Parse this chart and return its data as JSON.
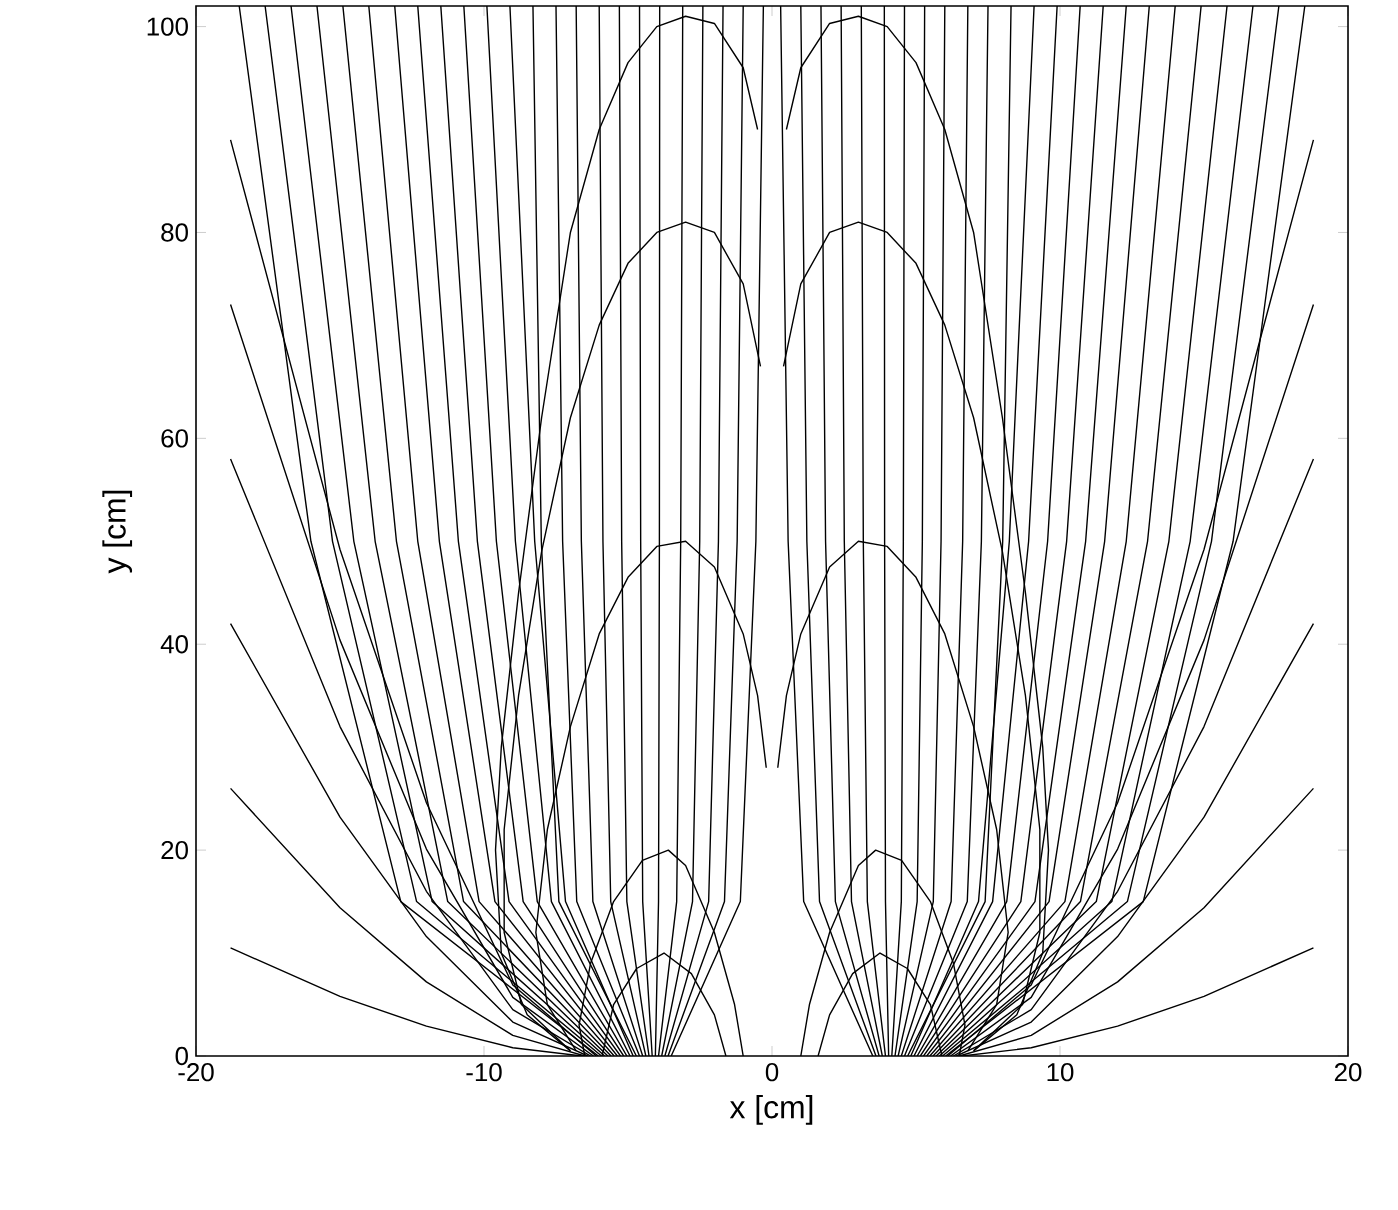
{
  "chart_data": {
    "type": "line",
    "xlabel": "x [cm]",
    "ylabel": "y [cm]",
    "xlim": [
      -20,
      20
    ],
    "ylim": [
      0,
      102
    ],
    "xticks": [
      -20,
      -10,
      0,
      10,
      20
    ],
    "yticks": [
      0,
      20,
      40,
      60,
      80,
      100
    ],
    "series": [
      {
        "color": "#000000",
        "x": [
          0.5,
          1,
          2,
          3,
          4,
          5,
          6,
          7,
          8,
          8.8,
          9.4,
          9.6,
          9.4,
          8.5,
          7
        ],
        "values": [
          90,
          96,
          100.3,
          101,
          100,
          96.5,
          90,
          80,
          62,
          45,
          30,
          20,
          10,
          4,
          0.5
        ]
      },
      {
        "color": "#000000",
        "x": [
          0.4,
          1,
          2,
          3,
          4,
          5,
          6,
          7,
          8,
          8.8,
          9.3,
          9.3,
          8.7,
          7
        ],
        "values": [
          67,
          75,
          80,
          81,
          80,
          77,
          71,
          62,
          49,
          35,
          22,
          12,
          5,
          0.5
        ]
      },
      {
        "color": "#000000",
        "x": [
          0.2,
          0.5,
          1,
          2,
          3,
          4,
          5,
          6,
          7,
          7.8,
          8.2,
          7.8,
          6.8
        ],
        "values": [
          28,
          35,
          41,
          47.5,
          50,
          49.5,
          46.5,
          41,
          32,
          22,
          12,
          5,
          0.5
        ]
      },
      {
        "color": "#000000",
        "x": [
          1,
          1.3,
          2,
          3,
          3.6,
          4.5,
          5.5,
          6.3,
          6.7,
          6.5
        ],
        "values": [
          0,
          5,
          12,
          18.5,
          20,
          19,
          15,
          9,
          3,
          0
        ]
      },
      {
        "color": "#000000",
        "x": [
          1.6,
          2,
          2.8,
          3.75,
          4.7,
          5.5,
          5.9
        ],
        "values": [
          0,
          4,
          8,
          10,
          8.5,
          5,
          0
        ]
      },
      {
        "color": "#000000",
        "x": [
          -0.5,
          -1,
          -2,
          -3,
          -4,
          -5,
          -6,
          -7,
          -8,
          -8.8,
          -9.4,
          -9.6,
          -9.4,
          -8.5,
          -7
        ],
        "values": [
          90,
          96,
          100.3,
          101,
          100,
          96.5,
          90,
          80,
          62,
          45,
          30,
          20,
          10,
          4,
          0.5
        ]
      },
      {
        "color": "#000000",
        "x": [
          -0.4,
          -1,
          -2,
          -3,
          -4,
          -5,
          -6,
          -7,
          -8,
          -8.8,
          -9.3,
          -9.3,
          -8.7,
          -7
        ],
        "values": [
          67,
          75,
          80,
          81,
          80,
          77,
          71,
          62,
          49,
          35,
          22,
          12,
          5,
          0.5
        ]
      },
      {
        "color": "#000000",
        "x": [
          -0.2,
          -0.5,
          -1,
          -2,
          -3,
          -4,
          -5,
          -6,
          -7,
          -7.8,
          -8.2,
          -7.8,
          -6.8
        ],
        "values": [
          28,
          35,
          41,
          47.5,
          50,
          49.5,
          46.5,
          41,
          32,
          22,
          12,
          5,
          0.5
        ]
      },
      {
        "color": "#000000",
        "x": [
          -1,
          -1.3,
          -2,
          -3,
          -3.6,
          -4.5,
          -5.5,
          -6.3,
          -6.7,
          -6.5
        ],
        "values": [
          0,
          5,
          12,
          18.5,
          20,
          19,
          15,
          9,
          3,
          0
        ]
      },
      {
        "color": "#000000",
        "x": [
          -1.6,
          -2,
          -2.8,
          -3.75,
          -4.7,
          -5.5,
          -5.9
        ],
        "values": [
          0,
          4,
          8,
          10,
          8.5,
          5,
          0
        ]
      },
      {
        "color": "#000000",
        "x": [
          3.5,
          1.1,
          0.56,
          0.3
        ],
        "values": [
          0,
          15,
          50,
          102
        ]
      },
      {
        "color": "#000000",
        "x": [
          3.61,
          1.65,
          1.21,
          1.0
        ],
        "values": [
          0,
          15,
          50,
          102
        ]
      },
      {
        "color": "#000000",
        "x": [
          3.72,
          2.2,
          1.86,
          1.7
        ],
        "values": [
          0,
          15,
          50,
          102
        ]
      },
      {
        "color": "#000000",
        "x": [
          3.83,
          2.76,
          2.51,
          2.4
        ],
        "values": [
          0,
          15,
          50,
          102
        ]
      },
      {
        "color": "#000000",
        "x": [
          3.94,
          3.31,
          3.17,
          3.1
        ],
        "values": [
          0,
          15,
          50,
          102
        ]
      },
      {
        "color": "#000000",
        "x": [
          4.05,
          3.94,
          3.91,
          3.9
        ],
        "values": [
          0,
          15,
          50,
          102
        ]
      },
      {
        "color": "#000000",
        "x": [
          4.16,
          4.49,
          4.56,
          4.6
        ],
        "values": [
          0,
          15,
          50,
          102
        ]
      },
      {
        "color": "#000000",
        "x": [
          4.27,
          5.04,
          5.22,
          5.3
        ],
        "values": [
          0,
          15,
          50,
          102
        ]
      },
      {
        "color": "#000000",
        "x": [
          4.38,
          5.6,
          5.87,
          6.0
        ],
        "values": [
          0,
          15,
          50,
          102
        ]
      },
      {
        "color": "#000000",
        "x": [
          4.49,
          6.22,
          6.62,
          6.8
        ],
        "values": [
          0,
          15,
          50,
          102
        ]
      },
      {
        "color": "#000000",
        "x": [
          4.6,
          6.78,
          7.27,
          7.5
        ],
        "values": [
          0,
          15,
          50,
          102
        ]
      },
      {
        "color": "#000000",
        "x": [
          4.71,
          7.4,
          8.01,
          8.3
        ],
        "values": [
          0,
          15,
          50,
          102
        ]
      },
      {
        "color": "#000000",
        "x": [
          4.82,
          7.17,
          8.24,
          9.1
        ],
        "values": [
          0,
          15,
          50,
          102
        ]
      },
      {
        "color": "#000000",
        "x": [
          4.93,
          7.66,
          8.91,
          9.9
        ],
        "values": [
          0,
          15,
          50,
          102
        ]
      },
      {
        "color": "#000000",
        "x": [
          5.04,
          8.15,
          9.57,
          10.7
        ],
        "values": [
          0,
          15,
          50,
          102
        ]
      },
      {
        "color": "#000000",
        "x": [
          5.15,
          8.64,
          10.23,
          11.5
        ],
        "values": [
          0,
          15,
          50,
          102
        ]
      },
      {
        "color": "#000000",
        "x": [
          5.26,
          9.13,
          10.89,
          12.3
        ],
        "values": [
          0,
          15,
          50,
          102
        ]
      },
      {
        "color": "#000000",
        "x": [
          5.37,
          9.62,
          11.55,
          13.1
        ],
        "values": [
          0,
          15,
          50,
          102
        ]
      },
      {
        "color": "#000000",
        "x": [
          5.48,
          10.17,
          12.3,
          14.0
        ],
        "values": [
          0,
          15,
          50,
          102
        ]
      },
      {
        "color": "#000000",
        "x": [
          5.59,
          10.71,
          13.04,
          14.9
        ],
        "values": [
          0,
          15,
          50,
          102
        ]
      },
      {
        "color": "#000000",
        "x": [
          5.7,
          11.26,
          13.78,
          15.8
        ],
        "values": [
          0,
          15,
          50,
          102
        ]
      },
      {
        "color": "#000000",
        "x": [
          5.81,
          11.8,
          14.52,
          16.7
        ],
        "values": [
          0,
          15,
          50,
          102
        ]
      },
      {
        "color": "#000000",
        "x": [
          5.92,
          12.34,
          15.26,
          17.6
        ],
        "values": [
          0,
          15,
          50,
          102
        ]
      },
      {
        "color": "#000000",
        "x": [
          6.03,
          12.89,
          16.01,
          18.5
        ],
        "values": [
          0,
          15,
          50,
          102
        ]
      },
      {
        "color": "#000000",
        "x": [
          6.1,
          9,
          12,
          15,
          18.8
        ],
        "values": [
          0,
          6.9,
          24.6,
          49.2,
          89
        ]
      },
      {
        "color": "#000000",
        "x": [
          6.2,
          9,
          12,
          15,
          18.8
        ],
        "values": [
          0,
          5.7,
          20.1,
          40.4,
          73
        ]
      },
      {
        "color": "#000000",
        "x": [
          6.3,
          9,
          12,
          15,
          18.8
        ],
        "values": [
          0,
          4.5,
          16,
          32,
          58
        ]
      },
      {
        "color": "#000000",
        "x": [
          6.4,
          9,
          12,
          15,
          18.8
        ],
        "values": [
          0,
          3.3,
          11.6,
          23.2,
          42
        ]
      },
      {
        "color": "#000000",
        "x": [
          6.5,
          9,
          12,
          15,
          18.8
        ],
        "values": [
          0,
          2,
          7.2,
          14.4,
          26
        ]
      },
      {
        "color": "#000000",
        "x": [
          6.6,
          9,
          12,
          15,
          18.8
        ],
        "values": [
          0,
          0.8,
          2.9,
          5.8,
          10.5
        ]
      },
      {
        "color": "#000000",
        "x": [
          -3.5,
          -1.1,
          -0.56,
          -0.3
        ],
        "values": [
          0,
          15,
          50,
          102
        ]
      },
      {
        "color": "#000000",
        "x": [
          -3.61,
          -1.65,
          -1.21,
          -1.0
        ],
        "values": [
          0,
          15,
          50,
          102
        ]
      },
      {
        "color": "#000000",
        "x": [
          -3.72,
          -2.2,
          -1.86,
          -1.7
        ],
        "values": [
          0,
          15,
          50,
          102
        ]
      },
      {
        "color": "#000000",
        "x": [
          -3.83,
          -2.76,
          -2.51,
          -2.4
        ],
        "values": [
          0,
          15,
          50,
          102
        ]
      },
      {
        "color": "#000000",
        "x": [
          -3.94,
          -3.31,
          -3.17,
          -3.1
        ],
        "values": [
          0,
          15,
          50,
          102
        ]
      },
      {
        "color": "#000000",
        "x": [
          -4.05,
          -3.94,
          -3.91,
          -3.9
        ],
        "values": [
          0,
          15,
          50,
          102
        ]
      },
      {
        "color": "#000000",
        "x": [
          -4.16,
          -4.49,
          -4.56,
          -4.6
        ],
        "values": [
          0,
          15,
          50,
          102
        ]
      },
      {
        "color": "#000000",
        "x": [
          -4.27,
          -5.04,
          -5.22,
          -5.3
        ],
        "values": [
          0,
          15,
          50,
          102
        ]
      },
      {
        "color": "#000000",
        "x": [
          -4.38,
          -5.6,
          -5.87,
          -6.0
        ],
        "values": [
          0,
          15,
          50,
          102
        ]
      },
      {
        "color": "#000000",
        "x": [
          -4.49,
          -6.22,
          -6.62,
          -6.8
        ],
        "values": [
          0,
          15,
          50,
          102
        ]
      },
      {
        "color": "#000000",
        "x": [
          -4.6,
          -6.78,
          -7.27,
          -7.5
        ],
        "values": [
          0,
          15,
          50,
          102
        ]
      },
      {
        "color": "#000000",
        "x": [
          -4.71,
          -7.4,
          -8.01,
          -8.3
        ],
        "values": [
          0,
          15,
          50,
          102
        ]
      },
      {
        "color": "#000000",
        "x": [
          -4.82,
          -7.17,
          -8.24,
          -9.1
        ],
        "values": [
          0,
          15,
          50,
          102
        ]
      },
      {
        "color": "#000000",
        "x": [
          -4.93,
          -7.66,
          -8.91,
          -9.9
        ],
        "values": [
          0,
          15,
          50,
          102
        ]
      },
      {
        "color": "#000000",
        "x": [
          -5.04,
          -8.15,
          -9.57,
          -10.7
        ],
        "values": [
          0,
          15,
          50,
          102
        ]
      },
      {
        "color": "#000000",
        "x": [
          -5.15,
          -8.64,
          -10.23,
          -11.5
        ],
        "values": [
          0,
          15,
          50,
          102
        ]
      },
      {
        "color": "#000000",
        "x": [
          -5.26,
          -9.13,
          -10.89,
          -12.3
        ],
        "values": [
          0,
          15,
          50,
          102
        ]
      },
      {
        "color": "#000000",
        "x": [
          -5.37,
          -9.62,
          -11.55,
          -13.1
        ],
        "values": [
          0,
          15,
          50,
          102
        ]
      },
      {
        "color": "#000000",
        "x": [
          -5.48,
          -10.17,
          -12.3,
          -14.0
        ],
        "values": [
          0,
          15,
          50,
          102
        ]
      },
      {
        "color": "#000000",
        "x": [
          -5.59,
          -10.71,
          -13.04,
          -14.9
        ],
        "values": [
          0,
          15,
          50,
          102
        ]
      },
      {
        "color": "#000000",
        "x": [
          -5.7,
          -11.26,
          -13.78,
          -15.8
        ],
        "values": [
          0,
          15,
          50,
          102
        ]
      },
      {
        "color": "#000000",
        "x": [
          -5.81,
          -11.8,
          -14.52,
          -16.7
        ],
        "values": [
          0,
          15,
          50,
          102
        ]
      },
      {
        "color": "#000000",
        "x": [
          -5.92,
          -12.34,
          -15.26,
          -17.6
        ],
        "values": [
          0,
          15,
          50,
          102
        ]
      },
      {
        "color": "#000000",
        "x": [
          -6.03,
          -12.89,
          -16.01,
          -18.5
        ],
        "values": [
          0,
          15,
          50,
          102
        ]
      },
      {
        "color": "#000000",
        "x": [
          -6.1,
          -9,
          -12,
          -15,
          -18.8
        ],
        "values": [
          0,
          6.9,
          24.6,
          49.2,
          89
        ]
      },
      {
        "color": "#000000",
        "x": [
          -6.2,
          -9,
          -12,
          -15,
          -18.8
        ],
        "values": [
          0,
          5.7,
          20.1,
          40.4,
          73
        ]
      },
      {
        "color": "#000000",
        "x": [
          -6.3,
          -9,
          -12,
          -15,
          -18.8
        ],
        "values": [
          0,
          4.5,
          16,
          32,
          58
        ]
      },
      {
        "color": "#000000",
        "x": [
          -6.4,
          -9,
          -12,
          -15,
          -18.8
        ],
        "values": [
          0,
          3.3,
          11.6,
          23.2,
          42
        ]
      },
      {
        "color": "#000000",
        "x": [
          -6.5,
          -9,
          -12,
          -15,
          -18.8
        ],
        "values": [
          0,
          2,
          7.2,
          14.4,
          26
        ]
      },
      {
        "color": "#000000",
        "x": [
          -6.6,
          -9,
          -12,
          -15,
          -18.8
        ],
        "values": [
          0,
          0.8,
          2.9,
          5.8,
          10.5
        ]
      }
    ]
  }
}
